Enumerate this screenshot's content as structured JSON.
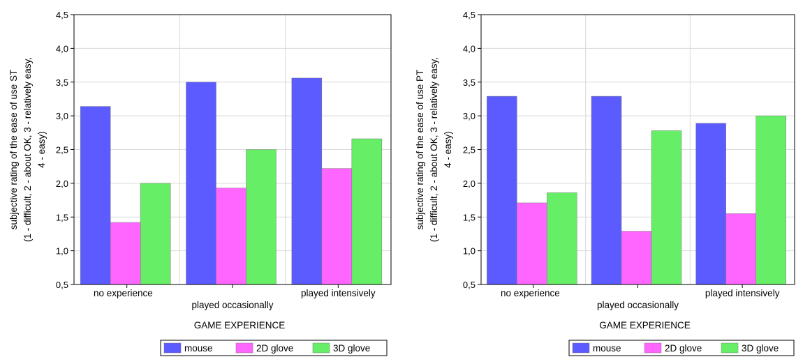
{
  "chart_data": [
    {
      "type": "bar",
      "ylabel_lines": [
        "subjective rating of the ease of use ST",
        "(1 - difficult, 2 - about OK, 3 - relatively easy,",
        "4 - easy)"
      ],
      "xlabel": "GAME EXPERIENCE",
      "categories": [
        "no experience",
        "played occasionally",
        "played intensively"
      ],
      "ylim": [
        0.5,
        4.5
      ],
      "yticks": [
        "0,5",
        "1,0",
        "1,5",
        "2,0",
        "2,5",
        "3,0",
        "3,5",
        "4,0",
        "4,5"
      ],
      "grid": true,
      "legend_position": "bottom-right",
      "series": [
        {
          "name": "mouse",
          "color": "#5b5bff",
          "values": [
            3.14,
            3.5,
            3.56
          ]
        },
        {
          "name": "2D glove",
          "color": "#ff66ff",
          "values": [
            1.42,
            1.93,
            2.22
          ]
        },
        {
          "name": "3D glove",
          "color": "#66ee66",
          "values": [
            2.0,
            2.5,
            2.66
          ]
        }
      ]
    },
    {
      "type": "bar",
      "ylabel_lines": [
        "subjective rating of the ease of use PT",
        "(1 - difficult, 2 - about OK, 3 - relatively easy,",
        "4 - easy)"
      ],
      "xlabel": "GAME EXPERIENCE",
      "categories": [
        "no experience",
        "played occasionally",
        "played intensively"
      ],
      "ylim": [
        0.5,
        4.5
      ],
      "yticks": [
        "0,5",
        "1,0",
        "1,5",
        "2,0",
        "2,5",
        "3,0",
        "3,5",
        "4,0",
        "4,5"
      ],
      "grid": true,
      "legend_position": "bottom-right",
      "series": [
        {
          "name": "mouse",
          "color": "#5b5bff",
          "values": [
            3.29,
            3.29,
            2.89
          ]
        },
        {
          "name": "2D glove",
          "color": "#ff66ff",
          "values": [
            1.71,
            1.29,
            1.55
          ]
        },
        {
          "name": "3D glove",
          "color": "#66ee66",
          "values": [
            1.86,
            2.78,
            3.0
          ]
        }
      ]
    }
  ]
}
